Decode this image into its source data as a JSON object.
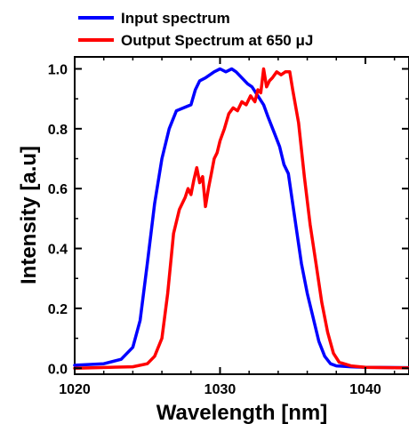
{
  "chart_data": {
    "type": "line",
    "title": "",
    "xlabel": "Wavelength  [nm]",
    "ylabel": "Intensity  [a.u]",
    "xlim": [
      1020,
      1043
    ],
    "ylim": [
      -0.02,
      1.04
    ],
    "grid": false,
    "legend_placement": "top, above plot",
    "x_ticks": [
      1020,
      1030,
      1040
    ],
    "y_ticks": [
      0.0,
      0.2,
      0.4,
      0.6,
      0.8,
      1.0
    ],
    "x_tick_labels": [
      "1020",
      "1030",
      "1040"
    ],
    "y_tick_labels": [
      "0.0",
      "0.2",
      "0.4",
      "0.6",
      "0.8",
      "1.0"
    ],
    "series": [
      {
        "name": "Input spectrum",
        "color": "#0000ff",
        "x": [
          1020,
          1022,
          1023.2,
          1024,
          1024.5,
          1025,
          1025.5,
          1026,
          1026.5,
          1027,
          1027.5,
          1028,
          1028.3,
          1028.6,
          1029,
          1029.3,
          1029.6,
          1030,
          1030.4,
          1030.8,
          1031.1,
          1031.5,
          1031.9,
          1032.2,
          1032.6,
          1033,
          1033.3,
          1033.7,
          1034.1,
          1034.4,
          1034.7,
          1035,
          1035.3,
          1035.6,
          1036,
          1036.4,
          1036.8,
          1037.2,
          1037.6,
          1038,
          1039,
          1040,
          1043
        ],
        "y": [
          0.01,
          0.015,
          0.03,
          0.07,
          0.16,
          0.35,
          0.55,
          0.7,
          0.8,
          0.86,
          0.87,
          0.88,
          0.93,
          0.96,
          0.97,
          0.98,
          0.99,
          1.0,
          0.99,
          1.0,
          0.99,
          0.97,
          0.95,
          0.94,
          0.91,
          0.88,
          0.84,
          0.79,
          0.74,
          0.68,
          0.65,
          0.55,
          0.45,
          0.35,
          0.25,
          0.17,
          0.09,
          0.04,
          0.015,
          0.008,
          0.005,
          0.003,
          0.002
        ]
      },
      {
        "name": "Output Spectrum at 650 μJ",
        "color": "#ff0000",
        "x": [
          1020,
          1024,
          1025,
          1025.5,
          1026,
          1026.4,
          1026.8,
          1027.2,
          1027.6,
          1027.8,
          1028,
          1028.2,
          1028.4,
          1028.6,
          1028.8,
          1029,
          1029.2,
          1029.4,
          1029.6,
          1029.8,
          1030,
          1030.3,
          1030.6,
          1030.9,
          1031.2,
          1031.5,
          1031.8,
          1032.1,
          1032.4,
          1032.6,
          1032.8,
          1033,
          1033.2,
          1033.4,
          1033.6,
          1033.9,
          1034.2,
          1034.5,
          1034.8,
          1035,
          1035.4,
          1035.8,
          1036.2,
          1036.6,
          1037,
          1037.4,
          1037.8,
          1038.2,
          1039,
          1040,
          1043
        ],
        "y": [
          0.0,
          0.005,
          0.015,
          0.04,
          0.1,
          0.25,
          0.45,
          0.53,
          0.57,
          0.6,
          0.58,
          0.63,
          0.67,
          0.62,
          0.64,
          0.54,
          0.6,
          0.65,
          0.7,
          0.72,
          0.76,
          0.8,
          0.85,
          0.87,
          0.86,
          0.89,
          0.88,
          0.91,
          0.89,
          0.93,
          0.92,
          1.0,
          0.94,
          0.96,
          0.97,
          0.99,
          0.98,
          0.99,
          0.99,
          0.93,
          0.82,
          0.64,
          0.48,
          0.35,
          0.22,
          0.12,
          0.05,
          0.02,
          0.008,
          0.003,
          0.001
        ]
      }
    ]
  }
}
